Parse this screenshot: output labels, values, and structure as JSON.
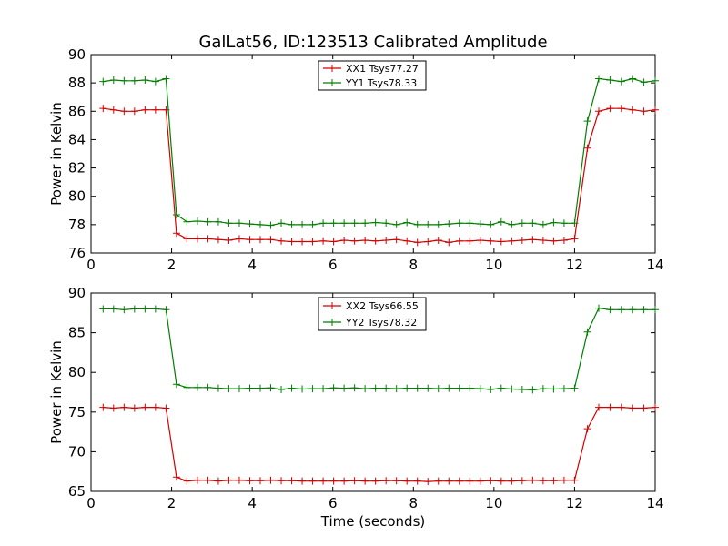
{
  "chart_data": [
    {
      "type": "line",
      "title": "GalLat56, ID:123513 Calibrated Amplitude",
      "xlabel": "",
      "ylabel": "Power in Kelvin",
      "xlim": [
        0,
        14
      ],
      "ylim": [
        76,
        90
      ],
      "xticks": [
        "0",
        "2",
        "4",
        "6",
        "8",
        "10",
        "12",
        "14"
      ],
      "yticks": [
        "76",
        "78",
        "80",
        "82",
        "84",
        "86",
        "88",
        "90"
      ],
      "grid": false,
      "legend": "top-center",
      "x": [
        0.3,
        0.56,
        0.82,
        1.08,
        1.34,
        1.6,
        1.86,
        2.12,
        2.38,
        2.64,
        2.9,
        3.16,
        3.42,
        3.68,
        3.94,
        4.2,
        4.46,
        4.72,
        4.98,
        5.24,
        5.5,
        5.76,
        6.02,
        6.28,
        6.54,
        6.8,
        7.06,
        7.32,
        7.58,
        7.84,
        8.1,
        8.36,
        8.62,
        8.88,
        9.14,
        9.4,
        9.66,
        9.92,
        10.18,
        10.44,
        10.7,
        10.96,
        11.22,
        11.48,
        11.74,
        12.0,
        12.32,
        12.6,
        12.88,
        13.16,
        13.44,
        13.72,
        14.0
      ],
      "series": [
        {
          "name": "XX1 Tsys77.27",
          "color": "#d40000",
          "values": [
            86.2,
            86.1,
            86.0,
            86.0,
            86.1,
            86.1,
            86.1,
            77.4,
            77.0,
            77.0,
            77.0,
            76.95,
            76.9,
            77.0,
            76.95,
            76.95,
            76.95,
            76.85,
            76.8,
            76.8,
            76.8,
            76.85,
            76.8,
            76.9,
            76.85,
            76.9,
            76.85,
            76.9,
            76.95,
            76.85,
            76.75,
            76.8,
            76.9,
            76.75,
            76.85,
            76.85,
            76.9,
            76.85,
            76.8,
            76.85,
            76.9,
            76.95,
            76.9,
            76.85,
            76.9,
            77.0,
            83.4,
            86.0,
            86.2,
            86.2,
            86.1,
            86.0,
            86.1
          ]
        },
        {
          "name": "YY1 Tsys78.33",
          "color": "#007f00",
          "values": [
            88.1,
            88.2,
            88.15,
            88.15,
            88.2,
            88.1,
            88.3,
            78.7,
            78.2,
            78.25,
            78.2,
            78.2,
            78.1,
            78.1,
            78.05,
            78.0,
            77.95,
            78.1,
            78.0,
            78.0,
            78.0,
            78.1,
            78.1,
            78.1,
            78.1,
            78.1,
            78.15,
            78.1,
            78.0,
            78.15,
            78.0,
            78.0,
            78.0,
            78.05,
            78.1,
            78.1,
            78.05,
            78.0,
            78.2,
            78.0,
            78.1,
            78.1,
            78.0,
            78.15,
            78.1,
            78.1,
            85.3,
            88.3,
            88.2,
            88.1,
            88.3,
            88.05,
            88.15
          ]
        }
      ]
    },
    {
      "type": "line",
      "title": "",
      "xlabel": "Time (seconds)",
      "ylabel": "Power in Kelvin",
      "xlim": [
        0,
        14
      ],
      "ylim": [
        65,
        90
      ],
      "xticks": [
        "0",
        "2",
        "4",
        "6",
        "8",
        "10",
        "12",
        "14"
      ],
      "yticks": [
        "65",
        "70",
        "75",
        "80",
        "85",
        "90"
      ],
      "grid": false,
      "legend": "top-center",
      "x": [
        0.3,
        0.56,
        0.82,
        1.08,
        1.34,
        1.6,
        1.86,
        2.12,
        2.38,
        2.64,
        2.9,
        3.16,
        3.42,
        3.68,
        3.94,
        4.2,
        4.46,
        4.72,
        4.98,
        5.24,
        5.5,
        5.76,
        6.02,
        6.28,
        6.54,
        6.8,
        7.06,
        7.32,
        7.58,
        7.84,
        8.1,
        8.36,
        8.62,
        8.88,
        9.14,
        9.4,
        9.66,
        9.92,
        10.18,
        10.44,
        10.7,
        10.96,
        11.22,
        11.48,
        11.74,
        12.0,
        12.32,
        12.6,
        12.88,
        13.16,
        13.44,
        13.72,
        14.0
      ],
      "series": [
        {
          "name": "XX2 Tsys66.55",
          "color": "#d40000",
          "values": [
            75.6,
            75.5,
            75.6,
            75.5,
            75.6,
            75.6,
            75.5,
            66.8,
            66.3,
            66.4,
            66.4,
            66.3,
            66.4,
            66.4,
            66.35,
            66.35,
            66.4,
            66.35,
            66.35,
            66.3,
            66.3,
            66.3,
            66.3,
            66.3,
            66.35,
            66.3,
            66.3,
            66.35,
            66.35,
            66.3,
            66.3,
            66.25,
            66.3,
            66.3,
            66.3,
            66.3,
            66.3,
            66.35,
            66.3,
            66.3,
            66.35,
            66.4,
            66.35,
            66.35,
            66.4,
            66.4,
            72.9,
            75.6,
            75.6,
            75.6,
            75.5,
            75.5,
            75.6
          ]
        },
        {
          "name": "YY2 Tsys78.32",
          "color": "#007f00",
          "values": [
            88.0,
            88.0,
            87.9,
            88.0,
            88.0,
            88.0,
            87.9,
            78.5,
            78.1,
            78.1,
            78.1,
            78.0,
            77.95,
            77.95,
            78.0,
            78.0,
            78.05,
            77.85,
            78.0,
            77.9,
            77.95,
            77.95,
            78.05,
            78.0,
            78.05,
            77.95,
            78.0,
            78.0,
            77.95,
            78.0,
            78.0,
            78.0,
            77.95,
            78.0,
            78.0,
            78.0,
            77.95,
            77.85,
            78.0,
            77.9,
            77.85,
            77.8,
            77.95,
            77.9,
            77.95,
            78.0,
            85.1,
            88.1,
            87.9,
            87.9,
            87.9,
            87.9,
            87.9
          ]
        }
      ]
    }
  ]
}
